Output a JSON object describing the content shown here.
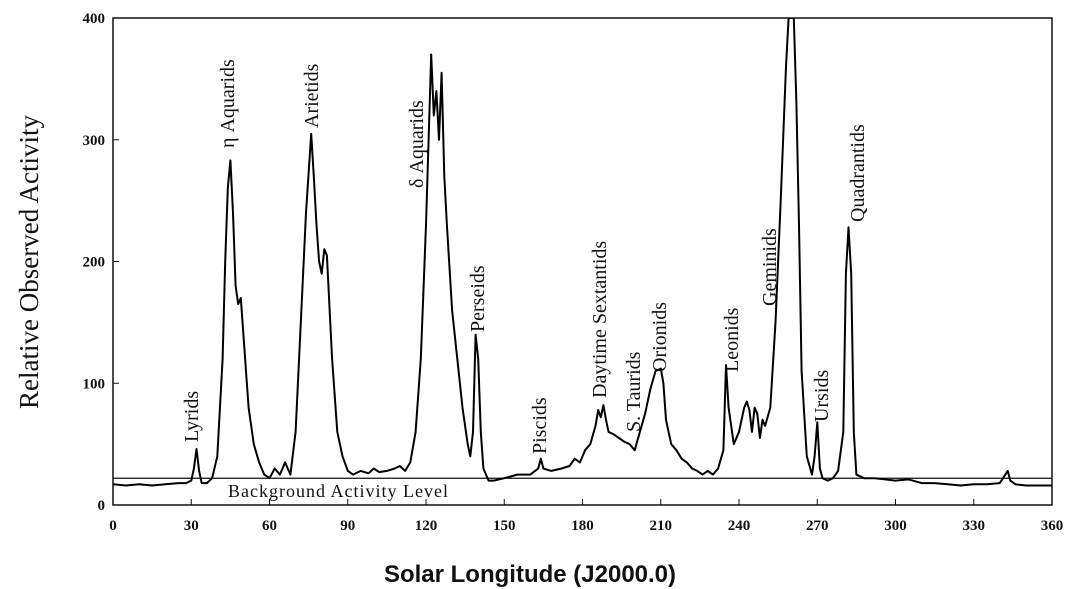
{
  "chart_data": {
    "type": "line",
    "xlabel": "Solar Longitude (J2000.0)",
    "ylabel": "Relative Observed Activity",
    "xlim": [
      0,
      360
    ],
    "ylim": [
      0,
      400
    ],
    "xticks": [
      0,
      30,
      60,
      90,
      120,
      150,
      180,
      210,
      240,
      270,
      300,
      330,
      360
    ],
    "yticks": [
      0,
      100,
      200,
      300,
      400
    ],
    "background_level": 22,
    "background_label": "Background Activity Level",
    "annotations": [
      "Lyrids",
      "η Aquarids",
      "Arietids",
      "δ Aquarids",
      "Perseids",
      "Piscids",
      "Daytime Sextantids",
      "S. Taurids",
      "Orionids",
      "Leonids",
      "Geminids",
      "Ursids",
      "Quadrantids"
    ],
    "series": [
      {
        "color": "#000000",
        "x": [
          0,
          5,
          10,
          15,
          20,
          25,
          28,
          30,
          31,
          32,
          33,
          34,
          36,
          38,
          40,
          42,
          43,
          44,
          45,
          46,
          47,
          48,
          49,
          50,
          52,
          54,
          56,
          58,
          60,
          62,
          64,
          66,
          68,
          70,
          72,
          74,
          76,
          77,
          78,
          79,
          80,
          81,
          82,
          84,
          86,
          88,
          90,
          92,
          95,
          98,
          100,
          102,
          105,
          108,
          110,
          112,
          114,
          116,
          118,
          120,
          121,
          122,
          123,
          124,
          125,
          126,
          127,
          128,
          130,
          132,
          134,
          136,
          137,
          138,
          139,
          140,
          141,
          142,
          144,
          146,
          150,
          155,
          160,
          163,
          164,
          165,
          168,
          172,
          175,
          177,
          179,
          181,
          183,
          185,
          186,
          187,
          188,
          189,
          190,
          192,
          194,
          196,
          198,
          200,
          202,
          204,
          206,
          208,
          210,
          211,
          212,
          214,
          216,
          218,
          220,
          222,
          224,
          226,
          228,
          230,
          232,
          234,
          235,
          236,
          238,
          240,
          242,
          243,
          244,
          245,
          246,
          247,
          248,
          249,
          250,
          252,
          254,
          256,
          258,
          259,
          260,
          261,
          262,
          263,
          264,
          266,
          268,
          269,
          270,
          271,
          272,
          274,
          276,
          278,
          280,
          281,
          282,
          283,
          284,
          285,
          288,
          292,
          296,
          300,
          305,
          310,
          315,
          320,
          325,
          330,
          335,
          340,
          343,
          344,
          346,
          350,
          355,
          360
        ],
        "values": [
          17,
          16,
          17,
          16,
          17,
          18,
          18,
          20,
          30,
          46,
          28,
          18,
          18,
          22,
          40,
          120,
          200,
          260,
          283,
          240,
          180,
          165,
          170,
          140,
          80,
          50,
          35,
          25,
          22,
          30,
          25,
          35,
          25,
          60,
          150,
          240,
          305,
          270,
          230,
          200,
          190,
          210,
          205,
          120,
          60,
          40,
          28,
          25,
          28,
          26,
          30,
          27,
          28,
          30,
          32,
          28,
          35,
          60,
          120,
          230,
          300,
          370,
          320,
          340,
          300,
          355,
          270,
          230,
          160,
          120,
          80,
          50,
          40,
          60,
          140,
          120,
          60,
          30,
          20,
          20,
          22,
          25,
          25,
          30,
          38,
          30,
          28,
          30,
          32,
          38,
          35,
          45,
          50,
          65,
          78,
          72,
          82,
          70,
          60,
          58,
          55,
          52,
          50,
          45,
          60,
          75,
          95,
          110,
          112,
          100,
          70,
          50,
          45,
          38,
          35,
          30,
          28,
          25,
          28,
          25,
          30,
          45,
          115,
          80,
          50,
          60,
          80,
          85,
          78,
          60,
          80,
          75,
          55,
          70,
          65,
          80,
          150,
          250,
          360,
          400,
          400,
          400,
          330,
          230,
          110,
          40,
          25,
          40,
          68,
          30,
          22,
          20,
          22,
          28,
          60,
          190,
          228,
          190,
          60,
          25,
          22,
          22,
          21,
          20,
          21,
          18,
          18,
          17,
          16,
          17,
          17,
          18,
          28,
          20,
          17,
          16,
          16,
          16
        ]
      }
    ]
  }
}
